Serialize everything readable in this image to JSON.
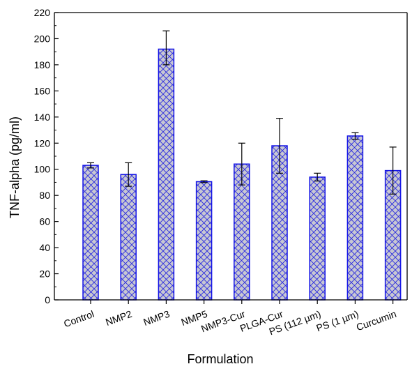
{
  "chart_data": {
    "type": "bar",
    "title": "",
    "xlabel": "Formulation",
    "ylabel": "TNF-alpha (pg/ml)",
    "ylim": [
      0,
      220
    ],
    "yticks": [
      0,
      20,
      40,
      60,
      80,
      100,
      120,
      140,
      160,
      180,
      200,
      220
    ],
    "categories": [
      "Control",
      "NMP2",
      "NMP3",
      "NMP5",
      "NMP3-Cur",
      "PLGA-Cur",
      "PS (112 µm)",
      "PS (1 µm)",
      "Curcumin"
    ],
    "values": [
      103,
      96,
      192,
      90.5,
      104,
      118,
      94,
      125.5,
      99
    ],
    "error_low": [
      2,
      9,
      12,
      0.7,
      16,
      21,
      3,
      2.5,
      18
    ],
    "error_high": [
      2,
      9,
      14,
      0.7,
      16,
      21,
      3,
      2.5,
      18
    ],
    "grid": false,
    "bar_fill": "#c8c8d2",
    "bar_pattern": "crosshatch",
    "bar_edge": "#1414e6",
    "hatch_color": "#2a2ae0",
    "error_bar_color": "#000000"
  }
}
